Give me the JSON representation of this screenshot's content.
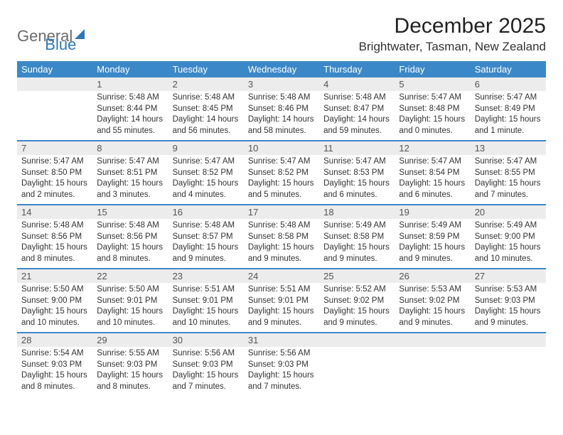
{
  "logo": {
    "part1": "General",
    "part2": "Blue"
  },
  "title": "December 2025",
  "location": "Brightwater, Tasman, New Zealand",
  "header_color": "#3b88c9",
  "divider_color": "#3b88c9",
  "band_color": "#ececec",
  "day_headers": [
    "Sunday",
    "Monday",
    "Tuesday",
    "Wednesday",
    "Thursday",
    "Friday",
    "Saturday"
  ],
  "weeks": [
    [
      {
        "day": "",
        "empty": true
      },
      {
        "day": "1",
        "sunrise": "Sunrise: 5:48 AM",
        "sunset": "Sunset: 8:44 PM",
        "daylight1": "Daylight: 14 hours",
        "daylight2": "and 55 minutes."
      },
      {
        "day": "2",
        "sunrise": "Sunrise: 5:48 AM",
        "sunset": "Sunset: 8:45 PM",
        "daylight1": "Daylight: 14 hours",
        "daylight2": "and 56 minutes."
      },
      {
        "day": "3",
        "sunrise": "Sunrise: 5:48 AM",
        "sunset": "Sunset: 8:46 PM",
        "daylight1": "Daylight: 14 hours",
        "daylight2": "and 58 minutes."
      },
      {
        "day": "4",
        "sunrise": "Sunrise: 5:48 AM",
        "sunset": "Sunset: 8:47 PM",
        "daylight1": "Daylight: 14 hours",
        "daylight2": "and 59 minutes."
      },
      {
        "day": "5",
        "sunrise": "Sunrise: 5:47 AM",
        "sunset": "Sunset: 8:48 PM",
        "daylight1": "Daylight: 15 hours",
        "daylight2": "and 0 minutes."
      },
      {
        "day": "6",
        "sunrise": "Sunrise: 5:47 AM",
        "sunset": "Sunset: 8:49 PM",
        "daylight1": "Daylight: 15 hours",
        "daylight2": "and 1 minute."
      }
    ],
    [
      {
        "day": "7",
        "sunrise": "Sunrise: 5:47 AM",
        "sunset": "Sunset: 8:50 PM",
        "daylight1": "Daylight: 15 hours",
        "daylight2": "and 2 minutes."
      },
      {
        "day": "8",
        "sunrise": "Sunrise: 5:47 AM",
        "sunset": "Sunset: 8:51 PM",
        "daylight1": "Daylight: 15 hours",
        "daylight2": "and 3 minutes."
      },
      {
        "day": "9",
        "sunrise": "Sunrise: 5:47 AM",
        "sunset": "Sunset: 8:52 PM",
        "daylight1": "Daylight: 15 hours",
        "daylight2": "and 4 minutes."
      },
      {
        "day": "10",
        "sunrise": "Sunrise: 5:47 AM",
        "sunset": "Sunset: 8:52 PM",
        "daylight1": "Daylight: 15 hours",
        "daylight2": "and 5 minutes."
      },
      {
        "day": "11",
        "sunrise": "Sunrise: 5:47 AM",
        "sunset": "Sunset: 8:53 PM",
        "daylight1": "Daylight: 15 hours",
        "daylight2": "and 6 minutes."
      },
      {
        "day": "12",
        "sunrise": "Sunrise: 5:47 AM",
        "sunset": "Sunset: 8:54 PM",
        "daylight1": "Daylight: 15 hours",
        "daylight2": "and 6 minutes."
      },
      {
        "day": "13",
        "sunrise": "Sunrise: 5:47 AM",
        "sunset": "Sunset: 8:55 PM",
        "daylight1": "Daylight: 15 hours",
        "daylight2": "and 7 minutes."
      }
    ],
    [
      {
        "day": "14",
        "sunrise": "Sunrise: 5:48 AM",
        "sunset": "Sunset: 8:56 PM",
        "daylight1": "Daylight: 15 hours",
        "daylight2": "and 8 minutes."
      },
      {
        "day": "15",
        "sunrise": "Sunrise: 5:48 AM",
        "sunset": "Sunset: 8:56 PM",
        "daylight1": "Daylight: 15 hours",
        "daylight2": "and 8 minutes."
      },
      {
        "day": "16",
        "sunrise": "Sunrise: 5:48 AM",
        "sunset": "Sunset: 8:57 PM",
        "daylight1": "Daylight: 15 hours",
        "daylight2": "and 9 minutes."
      },
      {
        "day": "17",
        "sunrise": "Sunrise: 5:48 AM",
        "sunset": "Sunset: 8:58 PM",
        "daylight1": "Daylight: 15 hours",
        "daylight2": "and 9 minutes."
      },
      {
        "day": "18",
        "sunrise": "Sunrise: 5:49 AM",
        "sunset": "Sunset: 8:58 PM",
        "daylight1": "Daylight: 15 hours",
        "daylight2": "and 9 minutes."
      },
      {
        "day": "19",
        "sunrise": "Sunrise: 5:49 AM",
        "sunset": "Sunset: 8:59 PM",
        "daylight1": "Daylight: 15 hours",
        "daylight2": "and 9 minutes."
      },
      {
        "day": "20",
        "sunrise": "Sunrise: 5:49 AM",
        "sunset": "Sunset: 9:00 PM",
        "daylight1": "Daylight: 15 hours",
        "daylight2": "and 10 minutes."
      }
    ],
    [
      {
        "day": "21",
        "sunrise": "Sunrise: 5:50 AM",
        "sunset": "Sunset: 9:00 PM",
        "daylight1": "Daylight: 15 hours",
        "daylight2": "and 10 minutes."
      },
      {
        "day": "22",
        "sunrise": "Sunrise: 5:50 AM",
        "sunset": "Sunset: 9:01 PM",
        "daylight1": "Daylight: 15 hours",
        "daylight2": "and 10 minutes."
      },
      {
        "day": "23",
        "sunrise": "Sunrise: 5:51 AM",
        "sunset": "Sunset: 9:01 PM",
        "daylight1": "Daylight: 15 hours",
        "daylight2": "and 10 minutes."
      },
      {
        "day": "24",
        "sunrise": "Sunrise: 5:51 AM",
        "sunset": "Sunset: 9:01 PM",
        "daylight1": "Daylight: 15 hours",
        "daylight2": "and 9 minutes."
      },
      {
        "day": "25",
        "sunrise": "Sunrise: 5:52 AM",
        "sunset": "Sunset: 9:02 PM",
        "daylight1": "Daylight: 15 hours",
        "daylight2": "and 9 minutes."
      },
      {
        "day": "26",
        "sunrise": "Sunrise: 5:53 AM",
        "sunset": "Sunset: 9:02 PM",
        "daylight1": "Daylight: 15 hours",
        "daylight2": "and 9 minutes."
      },
      {
        "day": "27",
        "sunrise": "Sunrise: 5:53 AM",
        "sunset": "Sunset: 9:03 PM",
        "daylight1": "Daylight: 15 hours",
        "daylight2": "and 9 minutes."
      }
    ],
    [
      {
        "day": "28",
        "sunrise": "Sunrise: 5:54 AM",
        "sunset": "Sunset: 9:03 PM",
        "daylight1": "Daylight: 15 hours",
        "daylight2": "and 8 minutes."
      },
      {
        "day": "29",
        "sunrise": "Sunrise: 5:55 AM",
        "sunset": "Sunset: 9:03 PM",
        "daylight1": "Daylight: 15 hours",
        "daylight2": "and 8 minutes."
      },
      {
        "day": "30",
        "sunrise": "Sunrise: 5:56 AM",
        "sunset": "Sunset: 9:03 PM",
        "daylight1": "Daylight: 15 hours",
        "daylight2": "and 7 minutes."
      },
      {
        "day": "31",
        "sunrise": "Sunrise: 5:56 AM",
        "sunset": "Sunset: 9:03 PM",
        "daylight1": "Daylight: 15 hours",
        "daylight2": "and 7 minutes."
      },
      {
        "day": "",
        "empty": true
      },
      {
        "day": "",
        "empty": true
      },
      {
        "day": "",
        "empty": true
      }
    ]
  ]
}
